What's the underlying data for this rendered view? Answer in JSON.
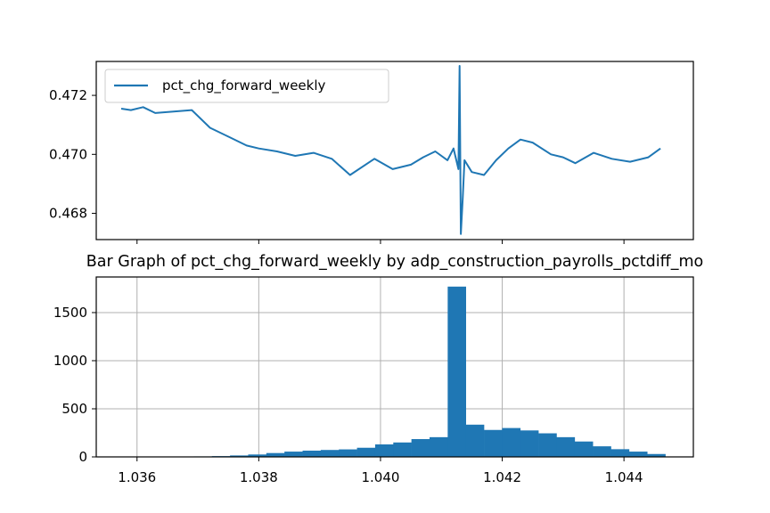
{
  "chart_data": [
    {
      "type": "line",
      "title": "",
      "xlabel": "",
      "ylabel": "",
      "legend": {
        "position": "upper-left",
        "entries": [
          "pct_chg_forward_weekly"
        ]
      },
      "grid": false,
      "xlim": [
        1.03533,
        1.04514
      ],
      "ylim": [
        0.46711,
        0.47315
      ],
      "x_ticks": [
        1.036,
        1.038,
        1.04,
        1.042,
        1.044
      ],
      "x_tick_labels_shown": false,
      "y_ticks": [
        0.468,
        0.47,
        0.472
      ],
      "y_tick_labels": [
        "0.468",
        "0.470",
        "0.472"
      ],
      "color": "#1f77b4",
      "series": [
        {
          "name": "pct_chg_forward_weekly",
          "x": [
            1.03574,
            1.0359,
            1.0361,
            1.0363,
            1.0366,
            1.0369,
            1.0372,
            1.0375,
            1.0378,
            1.038,
            1.0383,
            1.0386,
            1.0389,
            1.0392,
            1.0395,
            1.0399,
            1.0402,
            1.0405,
            1.0407,
            1.0409,
            1.0411,
            1.0412,
            1.04128,
            1.0413,
            1.04132,
            1.04135,
            1.04138,
            1.0415,
            1.0417,
            1.0419,
            1.0421,
            1.0423,
            1.0425,
            1.0428,
            1.043,
            1.0432,
            1.0435,
            1.0438,
            1.0441,
            1.0444,
            1.0446
          ],
          "y": [
            0.47155,
            0.4715,
            0.4716,
            0.4714,
            0.47145,
            0.4715,
            0.4709,
            0.4706,
            0.4703,
            0.4702,
            0.4701,
            0.46995,
            0.47005,
            0.46985,
            0.4693,
            0.46985,
            0.4695,
            0.46965,
            0.4699,
            0.4701,
            0.4698,
            0.4702,
            0.4695,
            0.473,
            0.4673,
            0.4685,
            0.4698,
            0.4694,
            0.4693,
            0.4698,
            0.4702,
            0.4705,
            0.4704,
            0.47,
            0.4699,
            0.4697,
            0.47005,
            0.46985,
            0.46975,
            0.4699,
            0.4702
          ]
        }
      ]
    },
    {
      "type": "bar",
      "subtype": "histogram",
      "title": "Bar Graph of pct_chg_forward_weekly by adp_construction_payrolls_pctdiff_mo",
      "xlabel": "",
      "ylabel": "",
      "grid": true,
      "xlim": [
        1.03533,
        1.04514
      ],
      "ylim": [
        0,
        1870
      ],
      "x_ticks": [
        1.036,
        1.038,
        1.04,
        1.042,
        1.044
      ],
      "x_tick_labels": [
        "1.036",
        "1.038",
        "1.040",
        "1.042",
        "1.044"
      ],
      "y_ticks": [
        0,
        500,
        1000,
        1500
      ],
      "y_tick_labels": [
        "0",
        "500",
        "1000",
        "1500"
      ],
      "color": "#1f77b4",
      "bin_edges": [
        1.03574,
        1.036038,
        1.036336,
        1.036634,
        1.036932,
        1.03723,
        1.037528,
        1.037826,
        1.038124,
        1.038422,
        1.03872,
        1.039018,
        1.039316,
        1.039614,
        1.039912,
        1.04021,
        1.040508,
        1.040806,
        1.041104,
        1.041402,
        1.0417,
        1.041998,
        1.042296,
        1.042594,
        1.042892,
        1.04319,
        1.043488,
        1.043786,
        1.044084,
        1.044382,
        1.04468
      ],
      "values": [
        1,
        1,
        2,
        3,
        5,
        8,
        15,
        25,
        40,
        55,
        65,
        72,
        78,
        95,
        130,
        150,
        185,
        205,
        1770,
        335,
        280,
        300,
        275,
        245,
        205,
        160,
        110,
        80,
        55,
        30
      ]
    }
  ]
}
